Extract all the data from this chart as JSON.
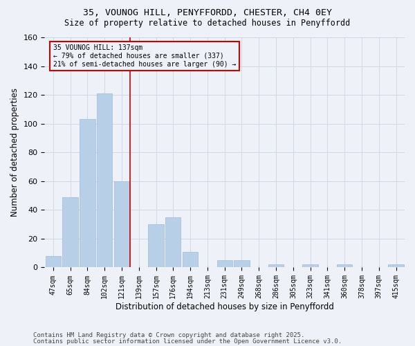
{
  "title_line1": "35, VOUNOG HILL, PENYFFORDD, CHESTER, CH4 0EY",
  "title_line2": "Size of property relative to detached houses in Penyffordd",
  "xlabel": "Distribution of detached houses by size in Penyffordd",
  "ylabel": "Number of detached properties",
  "categories": [
    "47sqm",
    "65sqm",
    "84sqm",
    "102sqm",
    "121sqm",
    "139sqm",
    "157sqm",
    "176sqm",
    "194sqm",
    "213sqm",
    "231sqm",
    "249sqm",
    "268sqm",
    "286sqm",
    "305sqm",
    "323sqm",
    "341sqm",
    "360sqm",
    "378sqm",
    "397sqm",
    "415sqm"
  ],
  "values": [
    8,
    49,
    103,
    121,
    60,
    0,
    30,
    35,
    11,
    0,
    5,
    5,
    0,
    2,
    0,
    2,
    0,
    2,
    0,
    0,
    2
  ],
  "bar_color": "#b8cfe8",
  "bar_edge_color": "#a0b8d8",
  "grid_color": "#d0d8e8",
  "bg_color": "#eef2f8",
  "vline_color": "#cc0000",
  "annotation_text": "35 VOUNOG HILL: 137sqm\n← 79% of detached houses are smaller (337)\n21% of semi-detached houses are larger (90) →",
  "annotation_box_color": "#cc0000",
  "ylim": [
    0,
    160
  ],
  "yticks": [
    0,
    20,
    40,
    60,
    80,
    100,
    120,
    140,
    160
  ],
  "footnote_line1": "Contains HM Land Registry data © Crown copyright and database right 2025.",
  "footnote_line2": "Contains public sector information licensed under the Open Government Licence v3.0."
}
